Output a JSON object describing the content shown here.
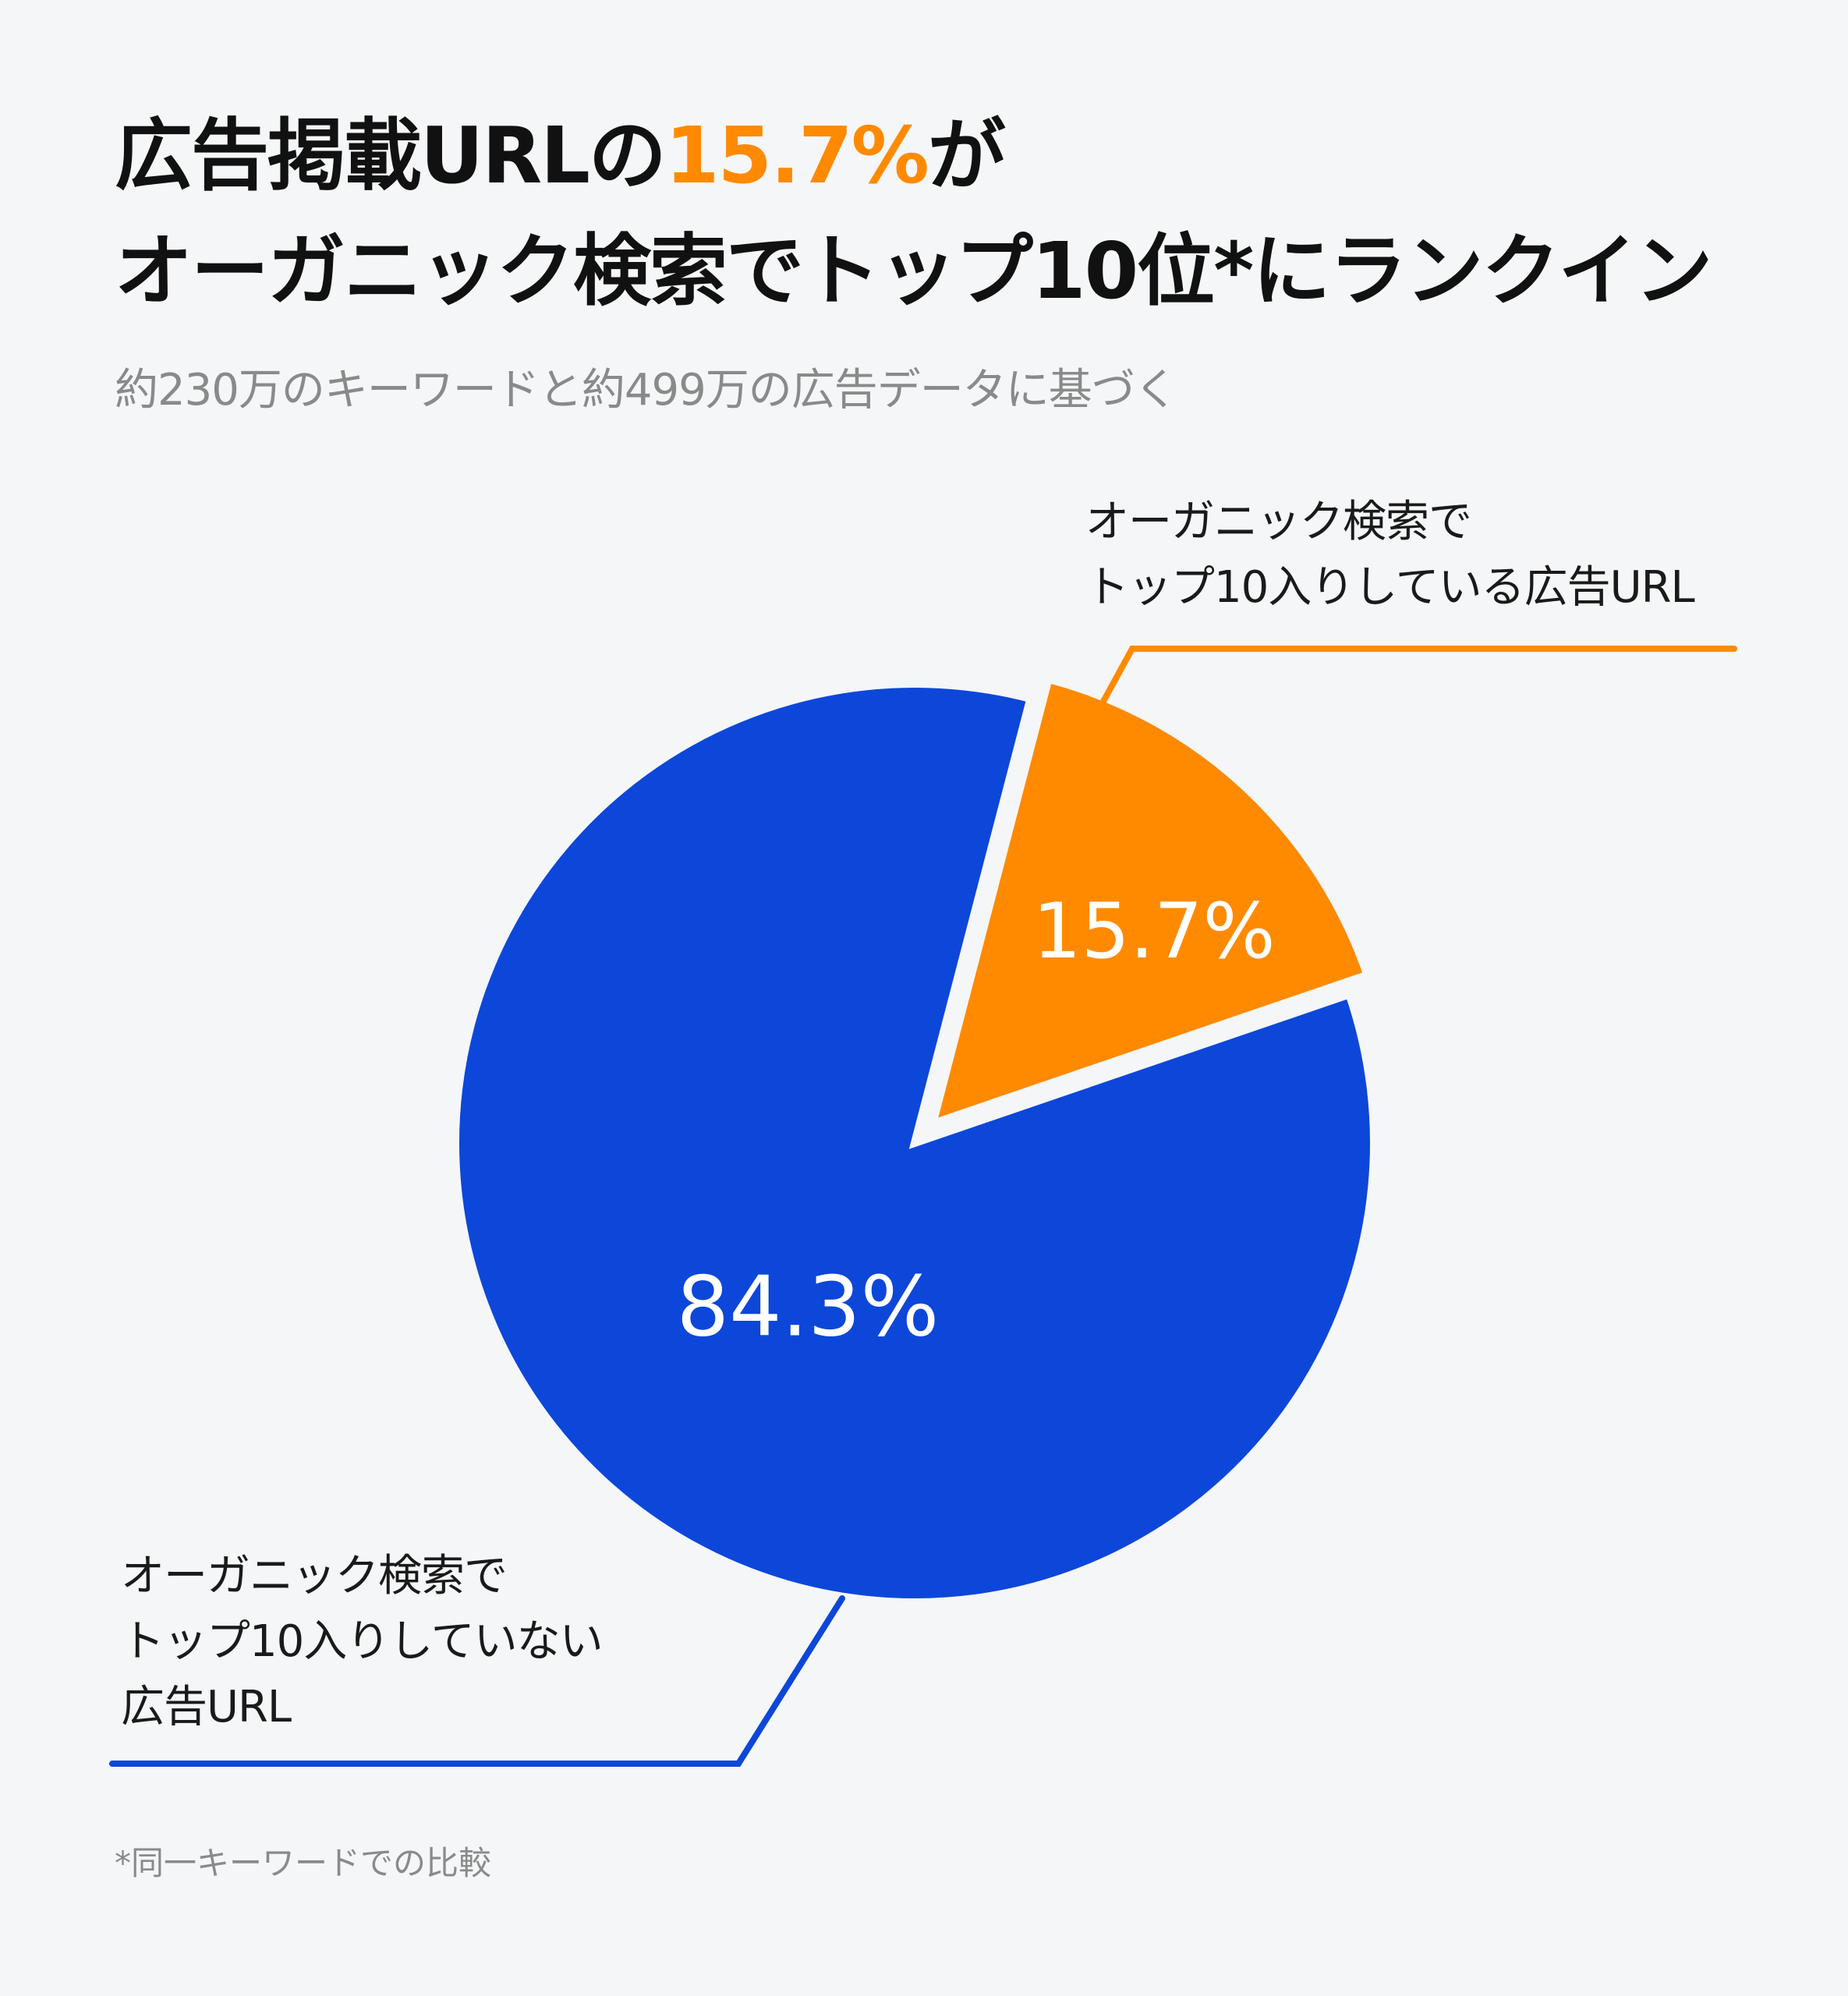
{
  "title": {
    "line1_pre": "広告掲載URLの",
    "line1_highlight": "15.7%",
    "line1_post": "が",
    "line2": "オーガニック検索でトップ10位*にランクイン"
  },
  "subtitle": "約230万のキーワードと約499万の広告データに基づく",
  "footnote": "*同一キーワードでの比較",
  "colors": {
    "highlight": "#ff8a00",
    "blue": "#0d47d9",
    "orange": "#ff8a00",
    "background": "#f4f6f8"
  },
  "chart_data": {
    "type": "pie",
    "slices": [
      {
        "label_lines": [
          "オーガニック検索で",
          "トップ10入りしている広告URL"
        ],
        "value": 15.7,
        "value_label": "15.7%",
        "color": "#ff8a00",
        "exploded": true
      },
      {
        "label_lines": [
          "オーガニック検索で",
          "トップ10入りしていない",
          "広告URL"
        ],
        "value": 84.3,
        "value_label": "84.3%",
        "color": "#0d47d9",
        "exploded": false
      }
    ]
  }
}
